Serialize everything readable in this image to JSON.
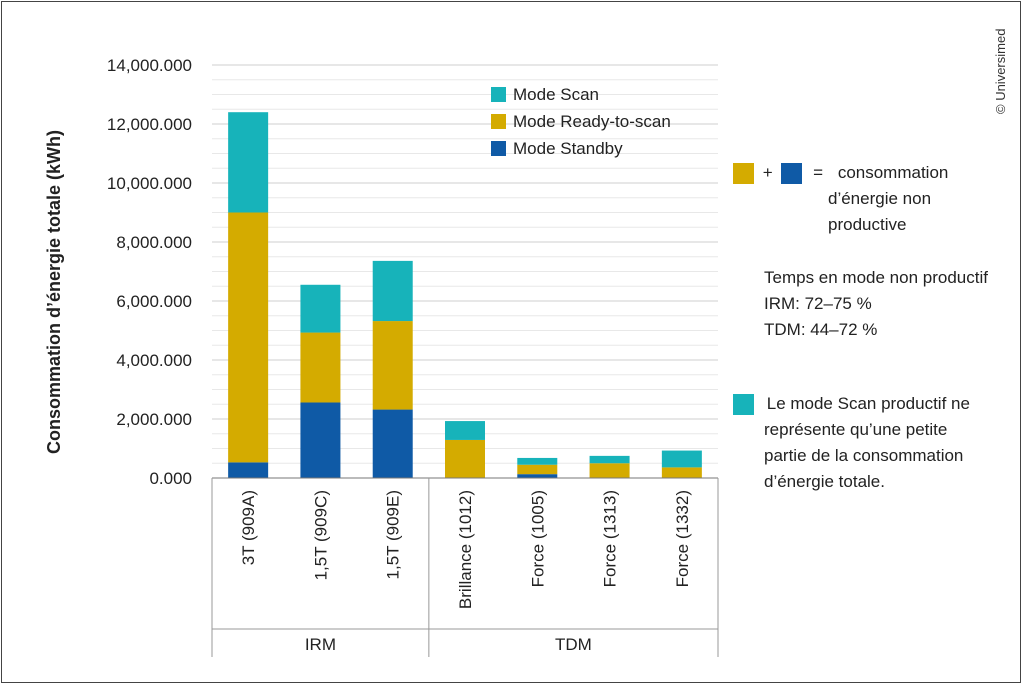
{
  "chart_data": {
    "type": "bar",
    "stacked": true,
    "ylabel": "Consommation d’énergie totale (kWh)",
    "xlabel": "",
    "ylim": [
      0,
      14000
    ],
    "yticks": [
      0,
      2000,
      4000,
      6000,
      8000,
      10000,
      12000,
      14000
    ],
    "ytick_labels": [
      "0.000",
      "2,000.000",
      "4,000.000",
      "6,000.000",
      "8,000.000",
      "10,000.000",
      "12,000.000",
      "14,000.000"
    ],
    "grid": true,
    "categories": [
      "3T (909A)",
      "1,5T (909C)",
      "1,5T (909E)",
      "Brillance (1012)",
      "Force (1005)",
      "Force (1313)",
      "Force (1332)"
    ],
    "groups": [
      {
        "label": "IRM",
        "categories": [
          "3T (909A)",
          "1,5T (909C)",
          "1,5T (909E)"
        ]
      },
      {
        "label": "TDM",
        "categories": [
          "Brillance (1012)",
          "Force (1005)",
          "Force (1313)",
          "Force (1332)"
        ]
      }
    ],
    "series": [
      {
        "name": "Mode Standby",
        "color": "#0f5aa6",
        "values": [
          530,
          2560,
          2320,
          0,
          130,
          0,
          0
        ]
      },
      {
        "name": "Mode Ready-to-scan",
        "color": "#d4ab00",
        "values": [
          8470,
          2370,
          3000,
          1290,
          320,
          500,
          360
        ]
      },
      {
        "name": "Mode Scan",
        "color": "#17b3ba",
        "values": [
          3400,
          1620,
          2040,
          640,
          230,
          250,
          570
        ]
      }
    ],
    "legend_order": [
      "Mode Scan",
      "Mode Ready-to-scan",
      "Mode Standby"
    ],
    "legend_position": "top-right"
  },
  "annotations": {
    "non_productive": {
      "plus": "+",
      "equals": "=",
      "text_lines": [
        "consommation",
        "d’énergie non",
        "productive"
      ]
    },
    "time_title": "Temps en mode non productif",
    "time_irm": "IRM: 72–75 %",
    "time_tdm": "TDM: 44–72 %",
    "scan_note_lines": [
      "Le mode Scan productif ne",
      "représente qu’une petite",
      "partie de la consommation",
      "d’énergie totale."
    ]
  },
  "copyright": "© Universimed",
  "colors": {
    "scan": "#17b3ba",
    "ready": "#d4ab00",
    "standby": "#0f5aa6",
    "grid": "#d9d9d9",
    "axis": "#777777"
  }
}
